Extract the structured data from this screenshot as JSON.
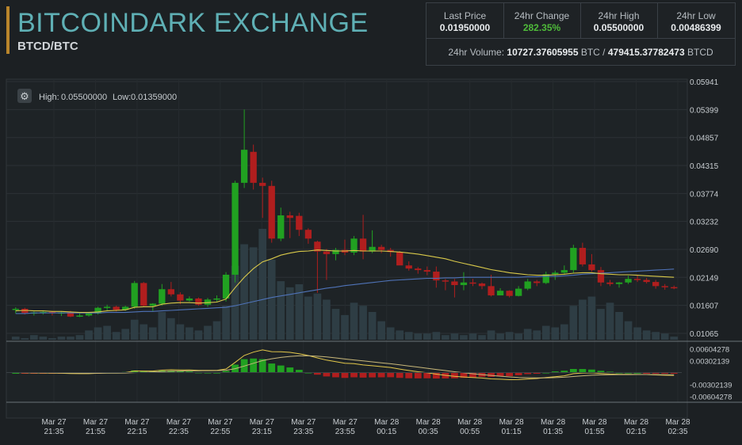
{
  "header": {
    "title": "BITCOINDARK EXCHANGE",
    "pair": "BTCD/BTC"
  },
  "stats": {
    "last_price_label": "Last Price",
    "last_price": "0.01950000",
    "change_label": "24hr Change",
    "change": "282.35%",
    "high_label": "24hr High",
    "high": "0.05500000",
    "low_label": "24hr Low",
    "low": "0.00486399",
    "volume_label": "24hr Volume:",
    "volume_btc": "10727.37605955",
    "volume_btc_unit": "BTC /",
    "volume_btcd": "479415.37782473",
    "volume_btcd_unit": "BTCD"
  },
  "chart_info": {
    "high_label": "High:",
    "high": "0.05500000",
    "low_label": "Low:",
    "low": "0.01359000"
  },
  "colors": {
    "up": "#21a121",
    "down": "#b01e1e",
    "ma_fast": "#d9c94a",
    "ma_slow": "#4f73b8",
    "volume": "#2e3d44"
  },
  "chart_data": [
    {
      "type": "candlestick",
      "price_ticks": [
        "0.05941",
        "0.05399",
        "0.04857",
        "0.04315",
        "0.03774",
        "0.03232",
        "0.02690",
        "0.02149",
        "0.01607",
        "0.01065"
      ],
      "ylim": [
        0.01065,
        0.05941
      ],
      "x_tick_labels": [
        [
          "Mar 27",
          "21:35"
        ],
        [
          "Mar 27",
          "21:55"
        ],
        [
          "Mar 27",
          "22:15"
        ],
        [
          "Mar 27",
          "22:35"
        ],
        [
          "Mar 27",
          "22:55"
        ],
        [
          "Mar 27",
          "23:15"
        ],
        [
          "Mar 27",
          "23:35"
        ],
        [
          "Mar 27",
          "23:55"
        ],
        [
          "Mar 28",
          "00:15"
        ],
        [
          "Mar 28",
          "00:35"
        ],
        [
          "Mar 28",
          "00:55"
        ],
        [
          "Mar 28",
          "01:15"
        ],
        [
          "Mar 28",
          "01:35"
        ],
        [
          "Mar 28",
          "01:55"
        ],
        [
          "Mar 28",
          "02:15"
        ],
        [
          "Mar 28",
          "02:35"
        ]
      ],
      "candles": [
        {
          "o": 0.0152,
          "h": 0.0157,
          "l": 0.0145,
          "c": 0.0154
        },
        {
          "o": 0.0154,
          "h": 0.0156,
          "l": 0.0143,
          "c": 0.0146
        },
        {
          "o": 0.0146,
          "h": 0.0149,
          "l": 0.0141,
          "c": 0.0147
        },
        {
          "o": 0.0147,
          "h": 0.015,
          "l": 0.0143,
          "c": 0.0148
        },
        {
          "o": 0.0148,
          "h": 0.015,
          "l": 0.0141,
          "c": 0.0146
        },
        {
          "o": 0.0146,
          "h": 0.0149,
          "l": 0.014,
          "c": 0.0147
        },
        {
          "o": 0.0147,
          "h": 0.015,
          "l": 0.0138,
          "c": 0.0139
        },
        {
          "o": 0.0139,
          "h": 0.0145,
          "l": 0.0138,
          "c": 0.0141
        },
        {
          "o": 0.0141,
          "h": 0.0148,
          "l": 0.0139,
          "c": 0.0145
        },
        {
          "o": 0.0145,
          "h": 0.0158,
          "l": 0.0143,
          "c": 0.0156
        },
        {
          "o": 0.0156,
          "h": 0.0162,
          "l": 0.015,
          "c": 0.0158
        },
        {
          "o": 0.0158,
          "h": 0.016,
          "l": 0.0149,
          "c": 0.0152
        },
        {
          "o": 0.0152,
          "h": 0.016,
          "l": 0.015,
          "c": 0.0158
        },
        {
          "o": 0.0158,
          "h": 0.0208,
          "l": 0.0154,
          "c": 0.0204
        },
        {
          "o": 0.0204,
          "h": 0.0206,
          "l": 0.0158,
          "c": 0.016
        },
        {
          "o": 0.016,
          "h": 0.0165,
          "l": 0.015,
          "c": 0.0164
        },
        {
          "o": 0.0164,
          "h": 0.0202,
          "l": 0.016,
          "c": 0.0192
        },
        {
          "o": 0.0192,
          "h": 0.0206,
          "l": 0.0178,
          "c": 0.0182
        },
        {
          "o": 0.0182,
          "h": 0.0186,
          "l": 0.0163,
          "c": 0.017
        },
        {
          "o": 0.017,
          "h": 0.0178,
          "l": 0.0168,
          "c": 0.0174
        },
        {
          "o": 0.0174,
          "h": 0.0176,
          "l": 0.016,
          "c": 0.0162
        },
        {
          "o": 0.0162,
          "h": 0.0175,
          "l": 0.0158,
          "c": 0.0172
        },
        {
          "o": 0.0172,
          "h": 0.018,
          "l": 0.0168,
          "c": 0.0174
        },
        {
          "o": 0.0174,
          "h": 0.0225,
          "l": 0.0168,
          "c": 0.022
        },
        {
          "o": 0.022,
          "h": 0.0402,
          "l": 0.0205,
          "c": 0.0398
        },
        {
          "o": 0.0398,
          "h": 0.054,
          "l": 0.0388,
          "c": 0.0462
        },
        {
          "o": 0.0458,
          "h": 0.0472,
          "l": 0.0385,
          "c": 0.0398
        },
        {
          "o": 0.0398,
          "h": 0.0408,
          "l": 0.033,
          "c": 0.0392
        },
        {
          "o": 0.0392,
          "h": 0.0402,
          "l": 0.0282,
          "c": 0.029
        },
        {
          "o": 0.029,
          "h": 0.035,
          "l": 0.0285,
          "c": 0.0335
        },
        {
          "o": 0.0335,
          "h": 0.0342,
          "l": 0.0291,
          "c": 0.033
        },
        {
          "o": 0.0334,
          "h": 0.034,
          "l": 0.0295,
          "c": 0.0307
        },
        {
          "o": 0.0307,
          "h": 0.031,
          "l": 0.028,
          "c": 0.029
        },
        {
          "o": 0.0284,
          "h": 0.0286,
          "l": 0.0185,
          "c": 0.0265
        },
        {
          "o": 0.0265,
          "h": 0.027,
          "l": 0.021,
          "c": 0.026
        },
        {
          "o": 0.026,
          "h": 0.0272,
          "l": 0.0248,
          "c": 0.0268
        },
        {
          "o": 0.0268,
          "h": 0.0288,
          "l": 0.0258,
          "c": 0.0263
        },
        {
          "o": 0.0263,
          "h": 0.0295,
          "l": 0.0258,
          "c": 0.029
        },
        {
          "o": 0.029,
          "h": 0.0336,
          "l": 0.025,
          "c": 0.0265
        },
        {
          "o": 0.0265,
          "h": 0.0306,
          "l": 0.0262,
          "c": 0.0274
        },
        {
          "o": 0.0274,
          "h": 0.0278,
          "l": 0.0262,
          "c": 0.0268
        },
        {
          "o": 0.0268,
          "h": 0.0272,
          "l": 0.0255,
          "c": 0.0264
        },
        {
          "o": 0.0264,
          "h": 0.0266,
          "l": 0.024,
          "c": 0.0238
        },
        {
          "o": 0.0238,
          "h": 0.0246,
          "l": 0.0228,
          "c": 0.0232
        },
        {
          "o": 0.0232,
          "h": 0.0235,
          "l": 0.0222,
          "c": 0.0229
        },
        {
          "o": 0.0229,
          "h": 0.0236,
          "l": 0.0219,
          "c": 0.0226
        },
        {
          "o": 0.0226,
          "h": 0.0236,
          "l": 0.0195,
          "c": 0.0209
        },
        {
          "o": 0.0209,
          "h": 0.0212,
          "l": 0.019,
          "c": 0.0207
        },
        {
          "o": 0.0207,
          "h": 0.0212,
          "l": 0.0176,
          "c": 0.02
        },
        {
          "o": 0.02,
          "h": 0.0225,
          "l": 0.019,
          "c": 0.0205
        },
        {
          "o": 0.0205,
          "h": 0.0212,
          "l": 0.0198,
          "c": 0.0203
        },
        {
          "o": 0.0203,
          "h": 0.0205,
          "l": 0.0192,
          "c": 0.0198
        },
        {
          "o": 0.0198,
          "h": 0.022,
          "l": 0.0178,
          "c": 0.018
        },
        {
          "o": 0.018,
          "h": 0.0194,
          "l": 0.018,
          "c": 0.0189
        },
        {
          "o": 0.0189,
          "h": 0.019,
          "l": 0.0176,
          "c": 0.0179
        },
        {
          "o": 0.0179,
          "h": 0.0198,
          "l": 0.0178,
          "c": 0.0193
        },
        {
          "o": 0.0193,
          "h": 0.0212,
          "l": 0.019,
          "c": 0.0207
        },
        {
          "o": 0.0207,
          "h": 0.021,
          "l": 0.0198,
          "c": 0.0204
        },
        {
          "o": 0.0204,
          "h": 0.0226,
          "l": 0.0202,
          "c": 0.0221
        },
        {
          "o": 0.0221,
          "h": 0.0228,
          "l": 0.021,
          "c": 0.0224
        },
        {
          "o": 0.0224,
          "h": 0.0238,
          "l": 0.022,
          "c": 0.0229
        },
        {
          "o": 0.0229,
          "h": 0.0278,
          "l": 0.0224,
          "c": 0.0272
        },
        {
          "o": 0.0272,
          "h": 0.0282,
          "l": 0.0236,
          "c": 0.024
        },
        {
          "o": 0.024,
          "h": 0.026,
          "l": 0.0226,
          "c": 0.0229
        },
        {
          "o": 0.0229,
          "h": 0.0235,
          "l": 0.0198,
          "c": 0.0205
        },
        {
          "o": 0.0205,
          "h": 0.021,
          "l": 0.0198,
          "c": 0.0202
        },
        {
          "o": 0.0202,
          "h": 0.0206,
          "l": 0.0195,
          "c": 0.0205
        },
        {
          "o": 0.0205,
          "h": 0.0218,
          "l": 0.0202,
          "c": 0.0212
        },
        {
          "o": 0.0212,
          "h": 0.022,
          "l": 0.0206,
          "c": 0.021
        },
        {
          "o": 0.021,
          "h": 0.0214,
          "l": 0.0203,
          "c": 0.0206
        },
        {
          "o": 0.0206,
          "h": 0.021,
          "l": 0.0193,
          "c": 0.0198
        },
        {
          "o": 0.0198,
          "h": 0.0202,
          "l": 0.0191,
          "c": 0.0196
        },
        {
          "o": 0.0196,
          "h": 0.0199,
          "l": 0.0192,
          "c": 0.0195
        }
      ],
      "volume": [
        2,
        1,
        3,
        2,
        1,
        2,
        2,
        3,
        6,
        8,
        9,
        5,
        7,
        13,
        10,
        8,
        18,
        14,
        10,
        8,
        6,
        9,
        12,
        22,
        48,
        62,
        60,
        72,
        52,
        38,
        34,
        36,
        28,
        30,
        26,
        20,
        16,
        24,
        22,
        18,
        12,
        8,
        6,
        5,
        4,
        4,
        5,
        3,
        4,
        3,
        4,
        3,
        6,
        4,
        5,
        4,
        7,
        6,
        9,
        8,
        10,
        22,
        26,
        28,
        20,
        24,
        18,
        12,
        8,
        6,
        5,
        4,
        2
      ],
      "ma_fast": [
        0.015,
        0.0151,
        0.015,
        0.015,
        0.0149,
        0.0149,
        0.0148,
        0.0147,
        0.0147,
        0.0148,
        0.015,
        0.0151,
        0.0152,
        0.0157,
        0.0158,
        0.0158,
        0.0163,
        0.0165,
        0.0166,
        0.0166,
        0.0165,
        0.0166,
        0.0167,
        0.0173,
        0.0195,
        0.0215,
        0.0232,
        0.0245,
        0.0251,
        0.0258,
        0.0262,
        0.0265,
        0.0266,
        0.0268,
        0.0267,
        0.0266,
        0.0266,
        0.0267,
        0.0266,
        0.0266,
        0.0266,
        0.0265,
        0.0264,
        0.0262,
        0.026,
        0.0257,
        0.0254,
        0.0251,
        0.0246,
        0.0242,
        0.0238,
        0.0234,
        0.023,
        0.0227,
        0.0224,
        0.0222,
        0.022,
        0.0219,
        0.0219,
        0.022,
        0.0221,
        0.0223,
        0.0224,
        0.0224,
        0.0222,
        0.0221,
        0.022,
        0.022,
        0.0219,
        0.0218,
        0.0217,
        0.0216,
        0.0215
      ],
      "ma_slow": [
        0.0145,
        0.0145,
        0.0146,
        0.0146,
        0.0146,
        0.0146,
        0.0146,
        0.0146,
        0.0146,
        0.0146,
        0.0147,
        0.0147,
        0.0147,
        0.0148,
        0.0149,
        0.0149,
        0.015,
        0.0151,
        0.0152,
        0.0153,
        0.0154,
        0.0155,
        0.0156,
        0.0157,
        0.016,
        0.0164,
        0.0168,
        0.0172,
        0.0176,
        0.0179,
        0.0182,
        0.0185,
        0.0188,
        0.0191,
        0.0194,
        0.0196,
        0.0199,
        0.0201,
        0.0203,
        0.0205,
        0.0207,
        0.0209,
        0.021,
        0.0211,
        0.0212,
        0.0213,
        0.0213,
        0.0214,
        0.0214,
        0.0215,
        0.0215,
        0.0215,
        0.0215,
        0.0215,
        0.0215,
        0.0215,
        0.0216,
        0.0216,
        0.0217,
        0.0217,
        0.0218,
        0.0219,
        0.0221,
        0.0222,
        0.0223,
        0.0224,
        0.0225,
        0.0226,
        0.0227,
        0.0228,
        0.0229,
        0.023,
        0.0231
      ]
    },
    {
      "type": "macd",
      "ticks": [
        "0.00604278",
        "0.00302139",
        "-0.00302139",
        "-0.00604278"
      ],
      "ylim": [
        -0.0068,
        0.0068
      ]
    }
  ]
}
